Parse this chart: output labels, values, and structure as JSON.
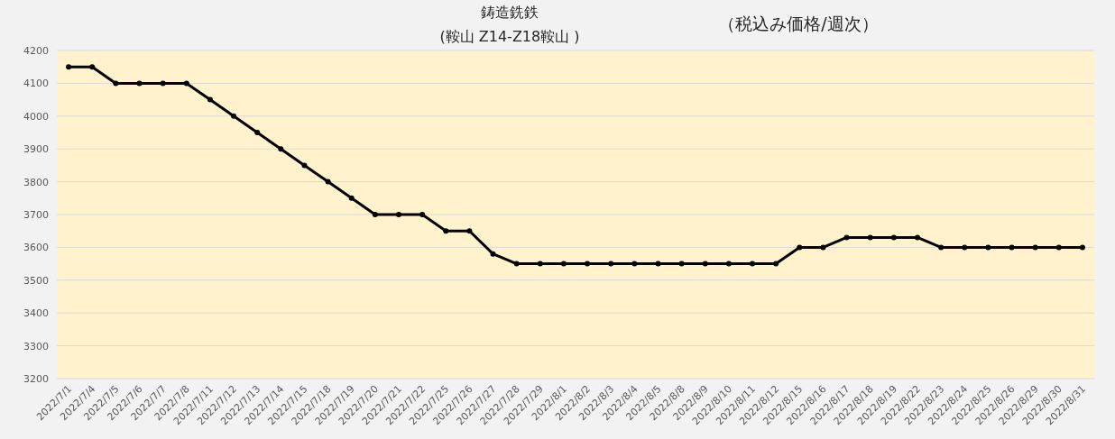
{
  "chart_data": {
    "type": "line",
    "title": "鋳造銑鉄",
    "subtitle": "(鞍山 Z14-Z18鞍山 )",
    "annotations": [
      "（税込み価格/週次）"
    ],
    "categories": [
      "2022/7/1",
      "2022/7/4",
      "2022/7/5",
      "2022/7/6",
      "2022/7/7",
      "2022/7/8",
      "2022/7/11",
      "2022/7/12",
      "2022/7/13",
      "2022/7/14",
      "2022/7/15",
      "2022/7/18",
      "2022/7/19",
      "2022/7/20",
      "2022/7/21",
      "2022/7/22",
      "2022/7/25",
      "2022/7/26",
      "2022/7/27",
      "2022/7/28",
      "2022/7/29",
      "2022/8/1",
      "2022/8/2",
      "2022/8/3",
      "2022/8/4",
      "2022/8/5",
      "2022/8/8",
      "2022/8/9",
      "2022/8/10",
      "2022/8/11",
      "2022/8/12",
      "2022/8/15",
      "2022/8/16",
      "2022/8/17",
      "2022/8/18",
      "2022/8/19",
      "2022/8/22",
      "2022/8/23",
      "2022/8/24",
      "2022/8/25",
      "2022/8/26",
      "2022/8/29",
      "2022/8/30",
      "2022/8/31"
    ],
    "series": [
      {
        "color": "#000000",
        "values": [
          4150,
          4150,
          4100,
          4100,
          4100,
          4100,
          4050,
          4000,
          3950,
          3900,
          3850,
          3800,
          3750,
          3700,
          3700,
          3700,
          3650,
          3650,
          3580,
          3550,
          3550,
          3550,
          3550,
          3550,
          3550,
          3550,
          3550,
          3550,
          3550,
          3550,
          3550,
          3600,
          3600,
          3630,
          3630,
          3630,
          3630,
          3600,
          3600,
          3600,
          3600,
          3600,
          3600,
          3600
        ]
      }
    ],
    "ylim": [
      3200,
      4200
    ],
    "yticks": [
      3200,
      3300,
      3400,
      3500,
      3600,
      3700,
      3800,
      3900,
      4000,
      4100,
      4200
    ],
    "grid": "y",
    "marker": "circle",
    "line_style": "solid"
  }
}
